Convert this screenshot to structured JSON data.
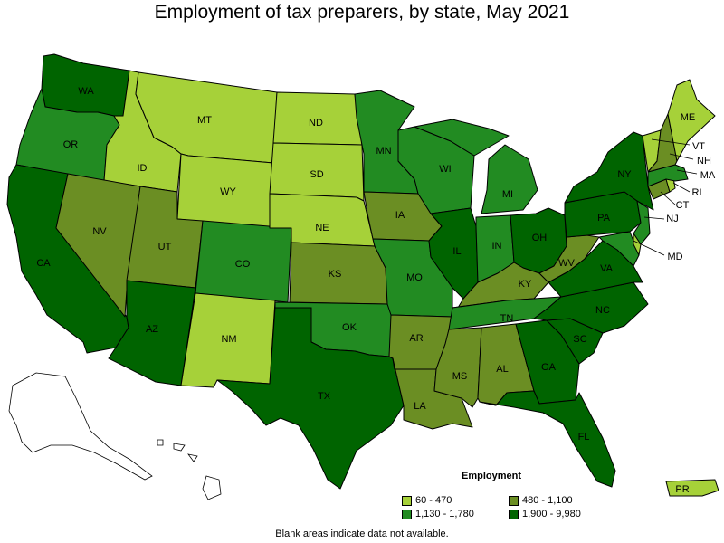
{
  "title": "Employment of tax preparers, by state, May 2021",
  "footnote": "Blank areas indicate data not available.",
  "legend": {
    "title": "Employment",
    "classes": [
      {
        "label": "60 - 470",
        "color": "#a6d139"
      },
      {
        "label": "480 - 1,100",
        "color": "#6b8e23"
      },
      {
        "label": "1,130 - 1,780",
        "color": "#228b22"
      },
      {
        "label": "1,900 - 9,980",
        "color": "#006400"
      }
    ]
  },
  "states": {
    "WA": {
      "label": "WA",
      "class": 3
    },
    "OR": {
      "label": "OR",
      "class": 2
    },
    "CA": {
      "label": "CA",
      "class": 3
    },
    "ID": {
      "label": "ID",
      "class": 0
    },
    "NV": {
      "label": "NV",
      "class": 1
    },
    "MT": {
      "label": "MT",
      "class": 0
    },
    "WY": {
      "label": "WY",
      "class": 0
    },
    "UT": {
      "label": "UT",
      "class": 1
    },
    "AZ": {
      "label": "AZ",
      "class": 3
    },
    "CO": {
      "label": "CO",
      "class": 2
    },
    "NM": {
      "label": "NM",
      "class": 0
    },
    "ND": {
      "label": "ND",
      "class": 0
    },
    "SD": {
      "label": "SD",
      "class": 0
    },
    "NE": {
      "label": "NE",
      "class": 0
    },
    "KS": {
      "label": "KS",
      "class": 1
    },
    "OK": {
      "label": "OK",
      "class": 2
    },
    "TX": {
      "label": "TX",
      "class": 3
    },
    "MN": {
      "label": "MN",
      "class": 2
    },
    "IA": {
      "label": "IA",
      "class": 1
    },
    "MO": {
      "label": "MO",
      "class": 2
    },
    "AR": {
      "label": "AR",
      "class": 1
    },
    "LA": {
      "label": "LA",
      "class": 1
    },
    "WI": {
      "label": "WI",
      "class": 2
    },
    "IL": {
      "label": "IL",
      "class": 3
    },
    "MI": {
      "label": "MI",
      "class": 2
    },
    "IN": {
      "label": "IN",
      "class": 2
    },
    "OH": {
      "label": "OH",
      "class": 3
    },
    "KY": {
      "label": "KY",
      "class": 1
    },
    "TN": {
      "label": "TN",
      "class": 2
    },
    "MS": {
      "label": "MS",
      "class": 1
    },
    "AL": {
      "label": "AL",
      "class": 1
    },
    "GA": {
      "label": "GA",
      "class": 3
    },
    "FL": {
      "label": "FL",
      "class": 3
    },
    "SC": {
      "label": "SC",
      "class": 3
    },
    "NC": {
      "label": "NC",
      "class": 3
    },
    "VA": {
      "label": "VA",
      "class": 3
    },
    "WV": {
      "label": "WV",
      "class": 1
    },
    "PA": {
      "label": "PA",
      "class": 3
    },
    "NY": {
      "label": "NY",
      "class": 3
    },
    "NJ": {
      "label": "NJ",
      "class": 2
    },
    "MD": {
      "label": "MD",
      "class": 2
    },
    "DE": {
      "label": "",
      "class": 0
    },
    "CT": {
      "label": "CT",
      "class": 1
    },
    "RI": {
      "label": "RI",
      "class": 0
    },
    "MA": {
      "label": "MA",
      "class": 2
    },
    "VT": {
      "label": "VT",
      "class": 0
    },
    "NH": {
      "label": "NH",
      "class": 1
    },
    "ME": {
      "label": "ME",
      "class": 0
    },
    "PR": {
      "label": "PR",
      "class": 0
    }
  }
}
